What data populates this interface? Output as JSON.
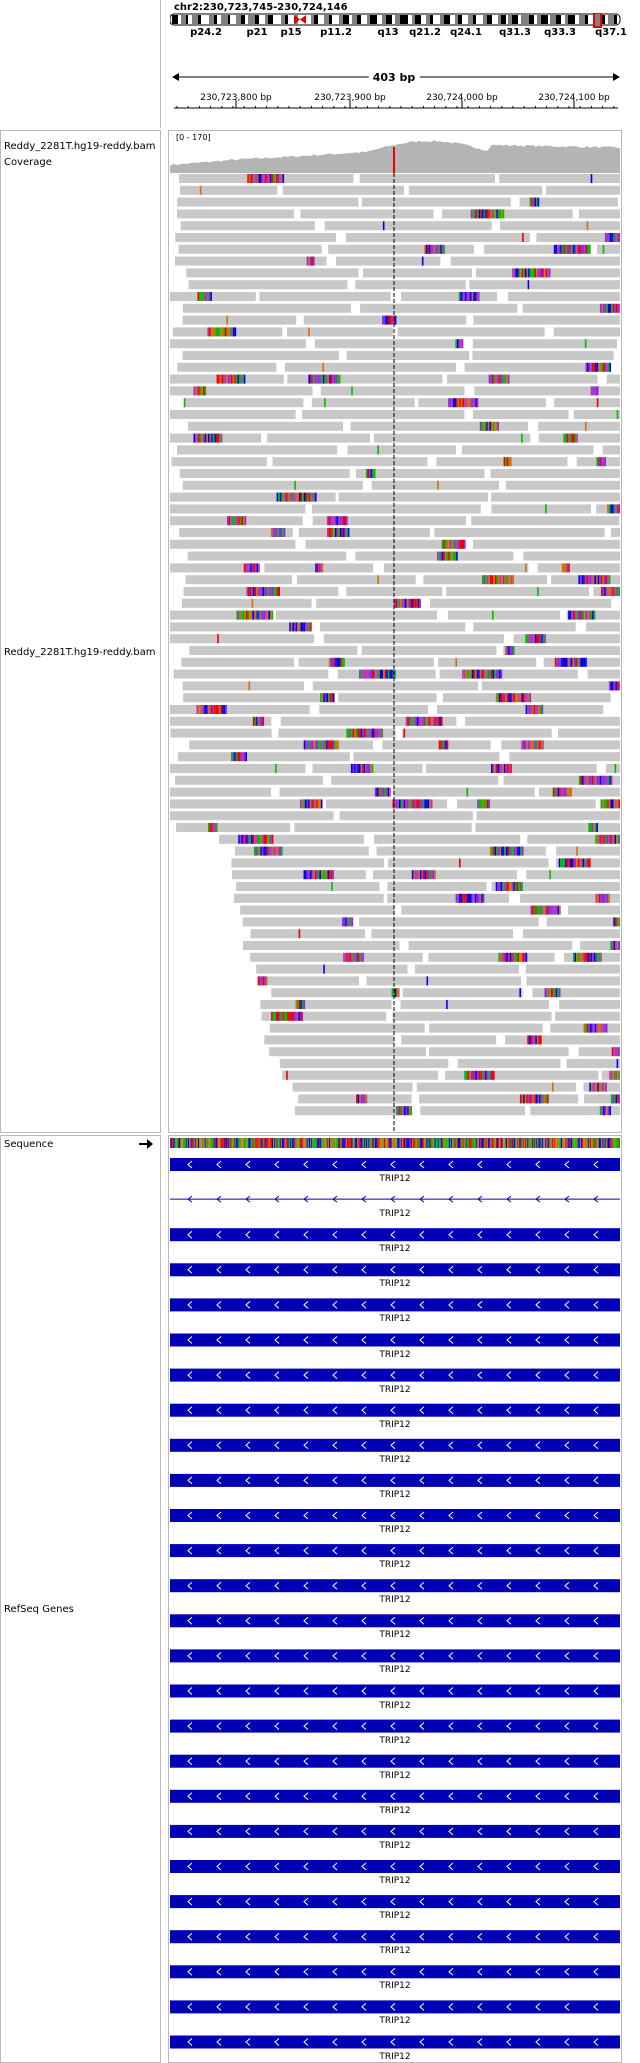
{
  "locus": "chr2:230,723,745-230,724,146",
  "ideogram": {
    "bands": [
      "p24.2",
      "p21",
      "p15",
      "p11.2",
      "q13",
      "q21.2",
      "q24.1",
      "q31.3",
      "q33.3",
      "q37.1"
    ]
  },
  "ruler": {
    "span": "403 bp",
    "ticks": [
      "230,723,800 bp",
      "230,723,900 bp",
      "230,724,000 bp",
      "230,724,100 bp"
    ]
  },
  "tracks": {
    "coverage": {
      "name": "Reddy_2281T.hg19-reddy.bam Coverage",
      "range": "[0 - 170]"
    },
    "alignments": {
      "name": "Reddy_2281T.hg19-reddy.bam"
    },
    "sequence": {
      "name": "Sequence",
      "strand_icon": "right-arrow-icon"
    },
    "refseq": {
      "name": "RefSeq Genes"
    }
  },
  "genes": [
    {
      "label": "TRIP12"
    },
    {
      "label": "TRIP12"
    },
    {
      "label": "TRIP12"
    },
    {
      "label": "TRIP12"
    },
    {
      "label": "TRIP12"
    },
    {
      "label": "TRIP12"
    },
    {
      "label": "TRIP12"
    },
    {
      "label": "TRIP12"
    },
    {
      "label": "TRIP12"
    },
    {
      "label": "TRIP12"
    },
    {
      "label": "TRIP12"
    },
    {
      "label": "TRIP12"
    },
    {
      "label": "TRIP12"
    },
    {
      "label": "TRIP12"
    },
    {
      "label": "TRIP12"
    },
    {
      "label": "TRIP12"
    },
    {
      "label": "TRIP12"
    },
    {
      "label": "TRIP12"
    },
    {
      "label": "TRIP12"
    },
    {
      "label": "TRIP12"
    },
    {
      "label": "TRIP12"
    },
    {
      "label": "TRIP12"
    },
    {
      "label": "TRIP12"
    },
    {
      "label": "TRIP12"
    },
    {
      "label": "TRIP12"
    },
    {
      "label": "TRIP12"
    }
  ],
  "colors": {
    "read": "#c8c8c8",
    "coverage": "#b4b4b4",
    "gene": "#0000b4",
    "centromere": "#dd0000",
    "base_A": "#00bb00",
    "base_C": "#0000ee",
    "base_G": "#d17105",
    "base_T": "#ee0000"
  }
}
